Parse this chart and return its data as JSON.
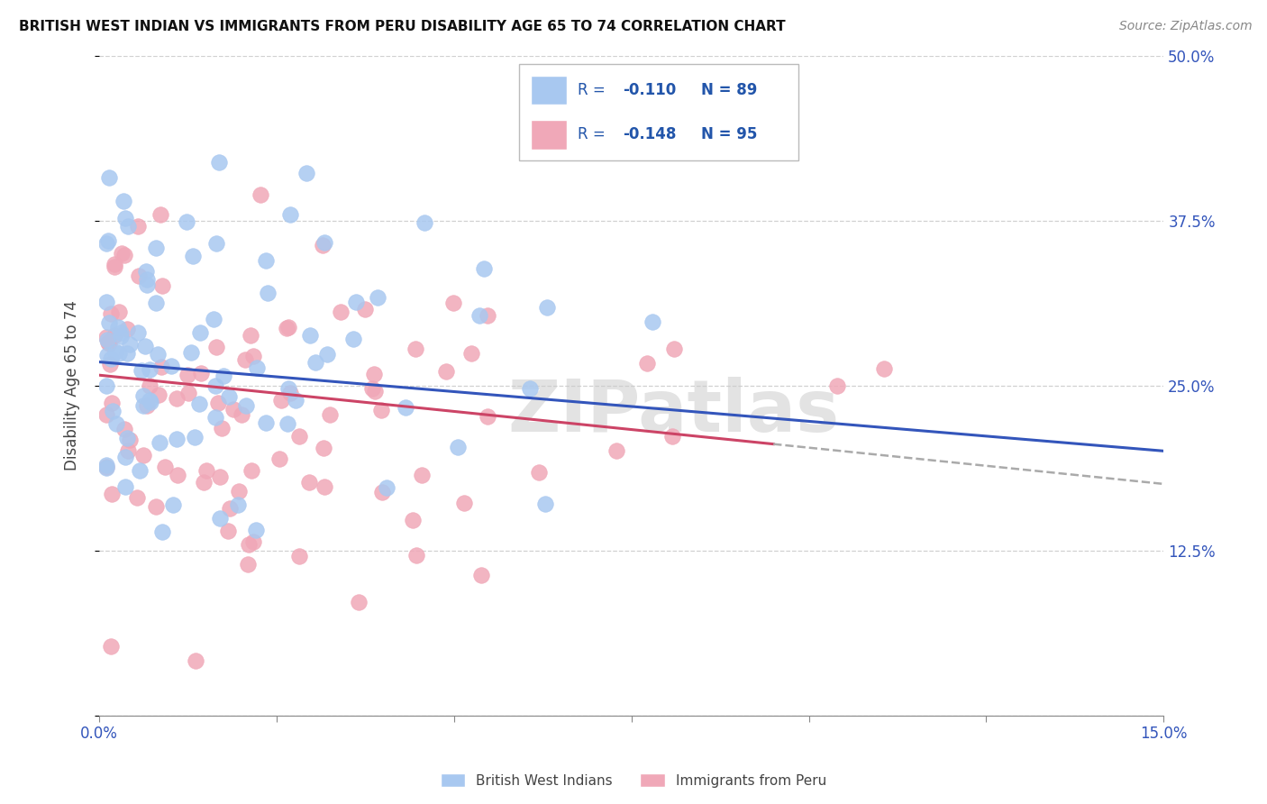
{
  "title": "BRITISH WEST INDIAN VS IMMIGRANTS FROM PERU DISABILITY AGE 65 TO 74 CORRELATION CHART",
  "source": "Source: ZipAtlas.com",
  "ylabel": "Disability Age 65 to 74",
  "xlim": [
    0.0,
    0.15
  ],
  "ylim": [
    0.0,
    0.5
  ],
  "xticks": [
    0.0,
    0.025,
    0.05,
    0.075,
    0.1,
    0.125,
    0.15
  ],
  "yticks": [
    0.0,
    0.125,
    0.25,
    0.375,
    0.5
  ],
  "grid_color": "#d0d0d0",
  "background_color": "#ffffff",
  "blue_color": "#a8c8f0",
  "pink_color": "#f0a8b8",
  "blue_line_color": "#3355bb",
  "pink_line_color": "#cc4466",
  "legend_R_blue": "-0.110",
  "legend_N_blue": "89",
  "legend_R_pink": "-0.148",
  "legend_N_pink": "95",
  "legend_label_blue": "British West Indians",
  "legend_label_pink": "Immigrants from Peru",
  "watermark": "ZIPatlas"
}
